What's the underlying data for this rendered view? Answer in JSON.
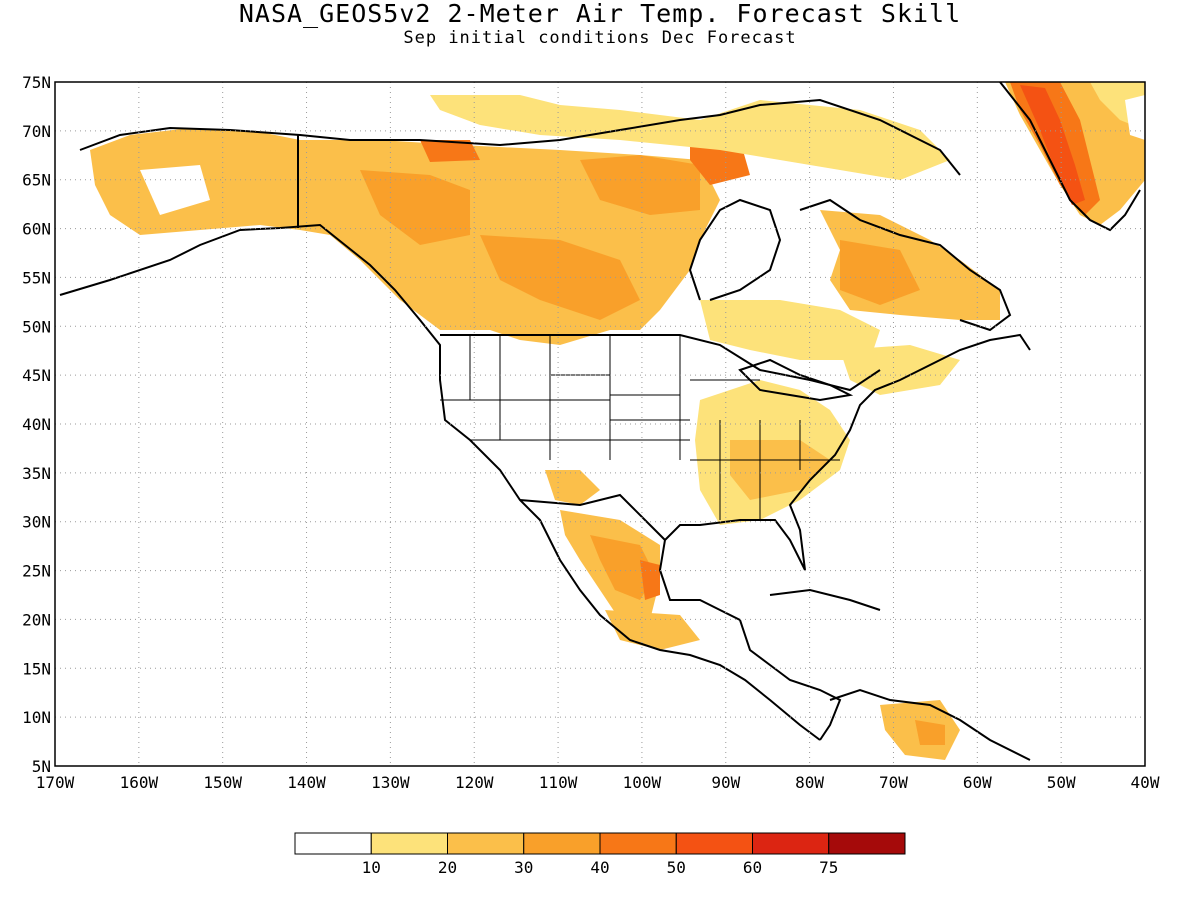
{
  "map": {
    "title": "NASA_GEOS5v2 2-Meter Air Temp. Forecast Skill",
    "subtitle": "Sep initial conditions  Dec Forecast",
    "lat_labels": [
      "75N",
      "70N",
      "65N",
      "60N",
      "55N",
      "50N",
      "45N",
      "40N",
      "35N",
      "30N",
      "25N",
      "20N",
      "15N",
      "10N",
      "5N"
    ],
    "lon_labels": [
      "170W",
      "160W",
      "150W",
      "140W",
      "130W",
      "120W",
      "110W",
      "100W",
      "90W",
      "80W",
      "70W",
      "60W",
      "50W",
      "40W"
    ],
    "extent": {
      "lon": [
        -170,
        -40
      ],
      "lat": [
        5,
        75
      ]
    },
    "grid": "dotted",
    "projection": "equirectangular"
  },
  "legend": {
    "labels": [
      "10",
      "20",
      "30",
      "40",
      "50",
      "60",
      "75"
    ],
    "colors": [
      "#ffffff",
      "#fde27a",
      "#fbbf4a",
      "#f9a02a",
      "#f77717",
      "#f45213",
      "#dc2512",
      "#a50a0a"
    ],
    "placement": "bottom-center"
  }
}
